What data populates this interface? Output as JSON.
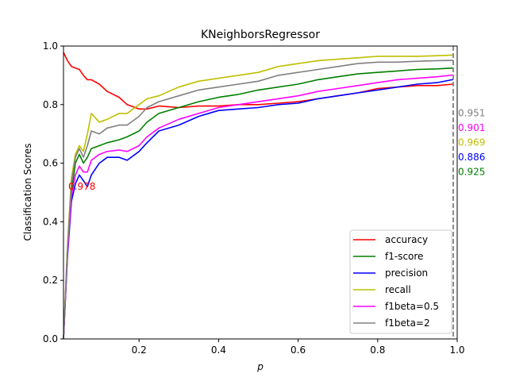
{
  "chart_data": {
    "type": "line",
    "title": "KNeighborsRegressor",
    "xlabel": "p",
    "ylabel": "Classification Scores",
    "xlim": [
      0.01,
      1.0
    ],
    "ylim": [
      0.0,
      1.0
    ],
    "x_ticks": [
      0.2,
      0.4,
      0.6,
      0.8,
      1.0
    ],
    "x_tick_labels": [
      "0.2",
      "0.4",
      "0.6",
      "0.8",
      "1.0"
    ],
    "y_ticks": [
      0.0,
      0.2,
      0.4,
      0.6,
      0.8,
      1.0
    ],
    "y_tick_labels": [
      "0.0",
      "0.2",
      "0.4",
      "0.6",
      "0.8",
      "1.0"
    ],
    "legend_position": "lower-right",
    "x": [
      0.01,
      0.02,
      0.03,
      0.04,
      0.05,
      0.06,
      0.07,
      0.08,
      0.1,
      0.12,
      0.15,
      0.17,
      0.2,
      0.22,
      0.25,
      0.3,
      0.35,
      0.4,
      0.45,
      0.5,
      0.55,
      0.6,
      0.65,
      0.7,
      0.75,
      0.8,
      0.85,
      0.9,
      0.95,
      0.99
    ],
    "series": [
      {
        "name": "accuracy",
        "color": "#ff0000",
        "values": [
          0.978,
          0.95,
          0.93,
          0.925,
          0.92,
          0.9,
          0.885,
          0.885,
          0.87,
          0.845,
          0.825,
          0.8,
          0.785,
          0.785,
          0.795,
          0.79,
          0.795,
          0.795,
          0.8,
          0.8,
          0.805,
          0.81,
          0.82,
          0.83,
          0.84,
          0.855,
          0.86,
          0.865,
          0.865,
          0.87
        ]
      },
      {
        "name": "f1-score",
        "color": "#008000",
        "values": [
          0.0,
          0.3,
          0.5,
          0.6,
          0.63,
          0.6,
          0.62,
          0.65,
          0.66,
          0.67,
          0.68,
          0.69,
          0.71,
          0.74,
          0.77,
          0.79,
          0.81,
          0.825,
          0.835,
          0.85,
          0.86,
          0.87,
          0.885,
          0.895,
          0.905,
          0.91,
          0.915,
          0.92,
          0.922,
          0.925
        ]
      },
      {
        "name": "precision",
        "color": "#0000ff",
        "values": [
          0.0,
          0.28,
          0.47,
          0.53,
          0.56,
          0.54,
          0.52,
          0.56,
          0.6,
          0.62,
          0.62,
          0.61,
          0.64,
          0.67,
          0.71,
          0.73,
          0.76,
          0.78,
          0.785,
          0.79,
          0.8,
          0.805,
          0.82,
          0.83,
          0.84,
          0.85,
          0.86,
          0.87,
          0.875,
          0.886
        ]
      },
      {
        "name": "recall",
        "color": "#bfbf00",
        "values": [
          0.0,
          0.32,
          0.55,
          0.63,
          0.66,
          0.64,
          0.7,
          0.77,
          0.74,
          0.75,
          0.77,
          0.77,
          0.8,
          0.82,
          0.83,
          0.86,
          0.88,
          0.89,
          0.9,
          0.91,
          0.93,
          0.94,
          0.95,
          0.955,
          0.96,
          0.965,
          0.965,
          0.965,
          0.967,
          0.969
        ]
      },
      {
        "name": "f1beta=0.5",
        "color": "#ff00ff",
        "values": [
          0.0,
          0.29,
          0.49,
          0.56,
          0.59,
          0.57,
          0.57,
          0.61,
          0.63,
          0.64,
          0.645,
          0.64,
          0.66,
          0.69,
          0.72,
          0.75,
          0.77,
          0.79,
          0.8,
          0.81,
          0.82,
          0.83,
          0.845,
          0.855,
          0.865,
          0.875,
          0.885,
          0.89,
          0.895,
          0.901
        ]
      },
      {
        "name": "f1beta=2",
        "color": "#808080",
        "values": [
          0.0,
          0.31,
          0.53,
          0.62,
          0.65,
          0.62,
          0.66,
          0.71,
          0.7,
          0.72,
          0.73,
          0.73,
          0.76,
          0.79,
          0.81,
          0.83,
          0.85,
          0.86,
          0.87,
          0.88,
          0.9,
          0.91,
          0.92,
          0.93,
          0.94,
          0.945,
          0.945,
          0.948,
          0.95,
          0.951
        ]
      }
    ],
    "annotations": [
      {
        "text": "0.978",
        "color": "#ff0000",
        "anchor": "left",
        "at_x": 0.01,
        "at_y": 0.51
      },
      {
        "text": "0.951",
        "color": "#808080",
        "anchor": "right",
        "at_x": 1.0,
        "at_y": 0.76
      },
      {
        "text": "0.901",
        "color": "#ff00ff",
        "anchor": "right",
        "at_x": 1.0,
        "at_y": 0.71
      },
      {
        "text": "0.969",
        "color": "#bfbf00",
        "anchor": "right",
        "at_x": 1.0,
        "at_y": 0.66
      },
      {
        "text": "0.886",
        "color": "#0000ff",
        "anchor": "right",
        "at_x": 1.0,
        "at_y": 0.61
      },
      {
        "text": "0.925",
        "color": "#008000",
        "anchor": "right",
        "at_x": 1.0,
        "at_y": 0.56
      }
    ],
    "vertical_marker": {
      "x": 0.99,
      "color": "#808080",
      "style": "dashed"
    }
  }
}
